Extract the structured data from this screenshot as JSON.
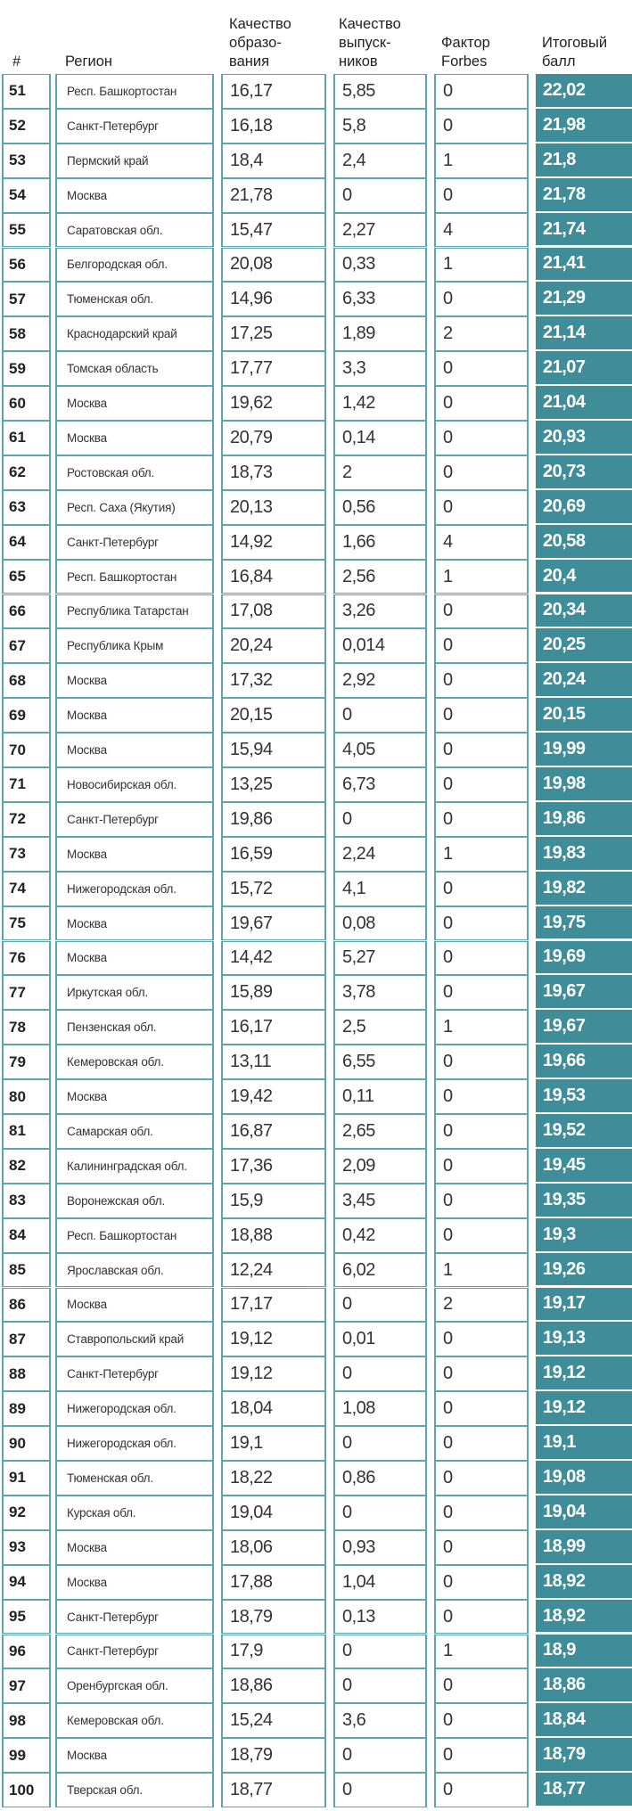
{
  "header": {
    "rank": "#",
    "region": "Регион",
    "education": [
      "Качество",
      "образо-",
      "вания"
    ],
    "graduates": [
      "Качество",
      "выпуск-",
      "ников"
    ],
    "forbes": [
      "Фактор",
      "Forbes"
    ],
    "total": [
      "Итоговый",
      "балл"
    ]
  },
  "colors": {
    "accent": "#3f8d99",
    "border": "#5da4ad"
  },
  "rows": [
    {
      "rank": "51",
      "region": "Респ. Башкортостан",
      "education": "16,17",
      "graduates": "5,85",
      "forbes": "0",
      "total": "22,02"
    },
    {
      "rank": "52",
      "region": "Санкт-Петербург",
      "education": "16,18",
      "graduates": "5,8",
      "forbes": "0",
      "total": "21,98"
    },
    {
      "rank": "53",
      "region": "Пермский край",
      "education": "18,4",
      "graduates": "2,4",
      "forbes": "1",
      "total": "21,8"
    },
    {
      "rank": "54",
      "region": "Москва",
      "education": "21,78",
      "graduates": "0",
      "forbes": "0",
      "total": "21,78"
    },
    {
      "rank": "55",
      "region": "Саратовская обл.",
      "education": "15,47",
      "graduates": "2,27",
      "forbes": "4",
      "total": "21,74"
    },
    {
      "rank": "56",
      "region": "Белгородская обл.",
      "education": "20,08",
      "graduates": "0,33",
      "forbes": "1",
      "total": "21,41"
    },
    {
      "rank": "57",
      "region": "Тюменская обл.",
      "education": "14,96",
      "graduates": "6,33",
      "forbes": "0",
      "total": "21,29"
    },
    {
      "rank": "58",
      "region": "Краснодарский край",
      "education": "17,25",
      "graduates": "1,89",
      "forbes": "2",
      "total": "21,14"
    },
    {
      "rank": "59",
      "region": "Томская область",
      "education": "17,77",
      "graduates": "3,3",
      "forbes": "0",
      "total": "21,07"
    },
    {
      "rank": "60",
      "region": "Москва",
      "education": "19,62",
      "graduates": "1,42",
      "forbes": "0",
      "total": "21,04"
    },
    {
      "rank": "61",
      "region": "Москва",
      "education": "20,79",
      "graduates": "0,14",
      "forbes": "0",
      "total": "20,93"
    },
    {
      "rank": "62",
      "region": "Ростовская обл.",
      "education": "18,73",
      "graduates": "2",
      "forbes": "0",
      "total": "20,73"
    },
    {
      "rank": "63",
      "region": "Респ. Саха (Якутия)",
      "education": "20,13",
      "graduates": "0,56",
      "forbes": "0",
      "total": "20,69"
    },
    {
      "rank": "64",
      "region": "Санкт-Петербург",
      "education": "14,92",
      "graduates": "1,66",
      "forbes": "4",
      "total": "20,58"
    },
    {
      "rank": "65",
      "region": "Респ. Башкортостан",
      "education": "16,84",
      "graduates": "2,56",
      "forbes": "1",
      "total": "20,4"
    },
    {
      "rank": "66",
      "region": "Республика Татарстан",
      "education": "17,08",
      "graduates": "3,26",
      "forbes": "0",
      "total": "20,34"
    },
    {
      "rank": "67",
      "region": "Республика Крым",
      "education": "20,24",
      "graduates": "0,014",
      "forbes": "0",
      "total": "20,25"
    },
    {
      "rank": "68",
      "region": "Москва",
      "education": "17,32",
      "graduates": "2,92",
      "forbes": "0",
      "total": "20,24"
    },
    {
      "rank": "69",
      "region": "Москва",
      "education": "20,15",
      "graduates": "0",
      "forbes": "0",
      "total": "20,15"
    },
    {
      "rank": "70",
      "region": "Москва",
      "education": "15,94",
      "graduates": "4,05",
      "forbes": "0",
      "total": "19,99"
    },
    {
      "rank": "71",
      "region": "Новосибирская обл.",
      "education": "13,25",
      "graduates": "6,73",
      "forbes": "0",
      "total": "19,98"
    },
    {
      "rank": "72",
      "region": "Санкт-Петербург",
      "education": "19,86",
      "graduates": "0",
      "forbes": "0",
      "total": "19,86"
    },
    {
      "rank": "73",
      "region": "Москва",
      "education": "16,59",
      "graduates": "2,24",
      "forbes": "1",
      "total": "19,83"
    },
    {
      "rank": "74",
      "region": "Нижегородская обл.",
      "education": "15,72",
      "graduates": "4,1",
      "forbes": "0",
      "total": "19,82"
    },
    {
      "rank": "75",
      "region": "Москва",
      "education": "19,67",
      "graduates": "0,08",
      "forbes": "0",
      "total": "19,75"
    },
    {
      "rank": "76",
      "region": "Москва",
      "education": "14,42",
      "graduates": "5,27",
      "forbes": "0",
      "total": "19,69"
    },
    {
      "rank": "77",
      "region": "Иркутская обл.",
      "education": "15,89",
      "graduates": "3,78",
      "forbes": "0",
      "total": "19,67"
    },
    {
      "rank": "78",
      "region": "Пензенская обл.",
      "education": "16,17",
      "graduates": "2,5",
      "forbes": "1",
      "total": "19,67"
    },
    {
      "rank": "79",
      "region": "Кемеровская обл.",
      "education": "13,11",
      "graduates": "6,55",
      "forbes": "0",
      "total": "19,66"
    },
    {
      "rank": "80",
      "region": "Москва",
      "education": "19,42",
      "graduates": "0,11",
      "forbes": "0",
      "total": "19,53"
    },
    {
      "rank": "81",
      "region": "Самарская обл.",
      "education": "16,87",
      "graduates": "2,65",
      "forbes": "0",
      "total": "19,52"
    },
    {
      "rank": "82",
      "region": "Калининградская обл.",
      "education": "17,36",
      "graduates": "2,09",
      "forbes": "0",
      "total": "19,45"
    },
    {
      "rank": "83",
      "region": "Воронежская обл.",
      "education": "15,9",
      "graduates": "3,45",
      "forbes": "0",
      "total": "19,35"
    },
    {
      "rank": "84",
      "region": "Респ. Башкортостан",
      "education": "18,88",
      "graduates": "0,42",
      "forbes": "0",
      "total": "19,3"
    },
    {
      "rank": "85",
      "region": "Ярославская обл.",
      "education": "12,24",
      "graduates": "6,02",
      "forbes": "1",
      "total": "19,26"
    },
    {
      "rank": "86",
      "region": "Москва",
      "education": "17,17",
      "graduates": "0",
      "forbes": "2",
      "total": "19,17"
    },
    {
      "rank": "87",
      "region": "Ставропольский край",
      "education": "19,12",
      "graduates": "0,01",
      "forbes": "0",
      "total": "19,13"
    },
    {
      "rank": "88",
      "region": "Санкт-Петербург",
      "education": "19,12",
      "graduates": "0",
      "forbes": "0",
      "total": "19,12"
    },
    {
      "rank": "89",
      "region": "Нижегородская обл.",
      "education": "18,04",
      "graduates": "1,08",
      "forbes": "0",
      "total": "19,12"
    },
    {
      "rank": "90",
      "region": "Нижегородская обл.",
      "education": "19,1",
      "graduates": "0",
      "forbes": "0",
      "total": "19,1"
    },
    {
      "rank": "91",
      "region": "Тюменская обл.",
      "education": "18,22",
      "graduates": "0,86",
      "forbes": "0",
      "total": "19,08"
    },
    {
      "rank": "92",
      "region": "Курская обл.",
      "education": "19,04",
      "graduates": "0",
      "forbes": "0",
      "total": "19,04"
    },
    {
      "rank": "93",
      "region": "Москва",
      "education": "18,06",
      "graduates": "0,93",
      "forbes": "0",
      "total": "18,99"
    },
    {
      "rank": "94",
      "region": "Москва",
      "education": "17,88",
      "graduates": "1,04",
      "forbes": "0",
      "total": "18,92"
    },
    {
      "rank": "95",
      "region": "Санкт-Петербург",
      "education": "18,79",
      "graduates": "0,13",
      "forbes": "0",
      "total": "18,92"
    },
    {
      "rank": "96",
      "region": "Санкт-Петербург",
      "education": "17,9",
      "graduates": "0",
      "forbes": "1",
      "total": "18,9"
    },
    {
      "rank": "97",
      "region": "Оренбургская обл.",
      "education": "18,86",
      "graduates": "0",
      "forbes": "0",
      "total": "18,86"
    },
    {
      "rank": "98",
      "region": "Кемеровская обл.",
      "education": "15,24",
      "graduates": "3,6",
      "forbes": "0",
      "total": "18,84"
    },
    {
      "rank": "99",
      "region": "Москва",
      "education": "18,79",
      "graduates": "0",
      "forbes": "0",
      "total": "18,79"
    },
    {
      "rank": "100",
      "region": "Тверская обл.",
      "education": "18,77",
      "graduates": "0",
      "forbes": "0",
      "total": "18,77"
    }
  ]
}
